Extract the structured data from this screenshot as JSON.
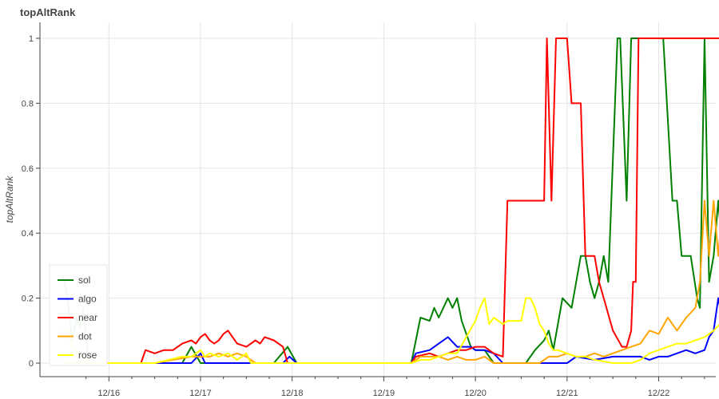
{
  "chart_data": {
    "type": "line",
    "title": "topAltRank",
    "xlabel": "",
    "ylabel": "topAltRank",
    "ylim": [
      0,
      1
    ],
    "yticks": [
      "0",
      "0.2",
      "0.4",
      "0.6",
      "0.8",
      "1"
    ],
    "xticks": [
      "12/16",
      "12/17",
      "12/18",
      "12/19",
      "12/20",
      "12/21",
      "12/22"
    ],
    "x_start": "12/15 12:00",
    "x_end": "12/22 12:00",
    "grid": true,
    "legend_position": "bottom-left",
    "series": [
      {
        "name": "sol",
        "color": "#008000",
        "points": [
          [
            -0.5,
            0.27
          ],
          [
            -0.45,
            0.2
          ],
          [
            -0.4,
            0.07
          ],
          [
            -0.35,
            0.14
          ],
          [
            -0.32,
            0.11
          ],
          [
            -0.28,
            0.17
          ],
          [
            -0.22,
            0.0
          ],
          [
            0.8,
            0.0
          ],
          [
            0.9,
            0.05
          ],
          [
            1.0,
            0.0
          ],
          [
            1.8,
            0.0
          ],
          [
            1.95,
            0.05
          ],
          [
            2.05,
            0.0
          ],
          [
            3.3,
            0.0
          ],
          [
            3.4,
            0.14
          ],
          [
            3.5,
            0.13
          ],
          [
            3.55,
            0.17
          ],
          [
            3.6,
            0.14
          ],
          [
            3.7,
            0.2
          ],
          [
            3.75,
            0.17
          ],
          [
            3.8,
            0.2
          ],
          [
            3.85,
            0.13
          ],
          [
            3.95,
            0.05
          ],
          [
            4.0,
            0.04
          ],
          [
            4.1,
            0.04
          ],
          [
            4.2,
            0.0
          ],
          [
            4.55,
            0.0
          ],
          [
            4.65,
            0.04
          ],
          [
            4.75,
            0.07
          ],
          [
            4.8,
            0.1
          ],
          [
            4.85,
            0.04
          ],
          [
            4.95,
            0.2
          ],
          [
            5.05,
            0.17
          ],
          [
            5.15,
            0.33
          ],
          [
            5.2,
            0.33
          ],
          [
            5.25,
            0.25
          ],
          [
            5.3,
            0.2
          ],
          [
            5.35,
            0.25
          ],
          [
            5.4,
            0.33
          ],
          [
            5.45,
            0.25
          ],
          [
            5.55,
            1.0
          ],
          [
            5.58,
            1.0
          ],
          [
            5.65,
            0.5
          ],
          [
            5.7,
            1.0
          ],
          [
            5.9,
            1.0
          ],
          [
            6.05,
            1.0
          ],
          [
            6.15,
            0.5
          ],
          [
            6.2,
            0.5
          ],
          [
            6.25,
            0.33
          ],
          [
            6.35,
            0.33
          ],
          [
            6.42,
            0.2
          ],
          [
            6.45,
            0.17
          ],
          [
            6.5,
            1.0
          ],
          [
            6.55,
            0.25
          ],
          [
            6.6,
            0.33
          ],
          [
            6.65,
            0.5
          ],
          [
            6.7,
            0.33
          ],
          [
            6.75,
            0.5
          ],
          [
            6.8,
            0.33
          ],
          [
            6.85,
            0.5
          ],
          [
            6.9,
            0.33
          ],
          [
            6.95,
            1.0
          ],
          [
            7.0,
            0.33
          ],
          [
            7.05,
            1.0
          ],
          [
            7.08,
            0.5
          ]
        ]
      },
      {
        "name": "algo",
        "color": "#0000ff",
        "points": [
          [
            -0.5,
            0.0
          ],
          [
            0.3,
            0.0
          ],
          [
            0.5,
            0.0
          ],
          [
            0.9,
            0.0
          ],
          [
            1.0,
            0.03
          ],
          [
            1.05,
            0.0
          ],
          [
            1.5,
            0.0
          ],
          [
            1.9,
            0.0
          ],
          [
            1.97,
            0.02
          ],
          [
            2.05,
            0.0
          ],
          [
            3.3,
            0.0
          ],
          [
            3.35,
            0.03
          ],
          [
            3.5,
            0.04
          ],
          [
            3.6,
            0.06
          ],
          [
            3.7,
            0.08
          ],
          [
            3.8,
            0.05
          ],
          [
            3.85,
            0.05
          ],
          [
            3.95,
            0.05
          ],
          [
            4.0,
            0.04
          ],
          [
            4.1,
            0.04
          ],
          [
            4.2,
            0.03
          ],
          [
            4.3,
            0.0
          ],
          [
            4.6,
            0.0
          ],
          [
            4.8,
            0.0
          ],
          [
            5.0,
            0.0
          ],
          [
            5.1,
            0.02
          ],
          [
            5.3,
            0.01
          ],
          [
            5.5,
            0.02
          ],
          [
            5.7,
            0.02
          ],
          [
            5.8,
            0.02
          ],
          [
            5.9,
            0.01
          ],
          [
            6.0,
            0.02
          ],
          [
            6.1,
            0.02
          ],
          [
            6.2,
            0.03
          ],
          [
            6.3,
            0.04
          ],
          [
            6.4,
            0.03
          ],
          [
            6.5,
            0.04
          ],
          [
            6.55,
            0.08
          ],
          [
            6.6,
            0.1
          ],
          [
            6.65,
            0.2
          ],
          [
            6.7,
            0.13
          ],
          [
            6.75,
            0.13
          ],
          [
            6.8,
            0.15
          ],
          [
            6.85,
            0.3
          ],
          [
            6.9,
            0.5
          ],
          [
            6.93,
            1.0
          ],
          [
            6.96,
            0.33
          ],
          [
            7.0,
            1.0
          ],
          [
            7.05,
            0.5
          ]
        ]
      },
      {
        "name": "near",
        "color": "#ff0000",
        "points": [
          [
            -0.5,
            0.0
          ],
          [
            0.0,
            0.0
          ],
          [
            0.35,
            0.0
          ],
          [
            0.4,
            0.04
          ],
          [
            0.5,
            0.03
          ],
          [
            0.6,
            0.04
          ],
          [
            0.7,
            0.04
          ],
          [
            0.8,
            0.06
          ],
          [
            0.9,
            0.07
          ],
          [
            0.95,
            0.06
          ],
          [
            1.0,
            0.08
          ],
          [
            1.05,
            0.09
          ],
          [
            1.1,
            0.07
          ],
          [
            1.15,
            0.06
          ],
          [
            1.2,
            0.07
          ],
          [
            1.25,
            0.09
          ],
          [
            1.3,
            0.1
          ],
          [
            1.35,
            0.08
          ],
          [
            1.4,
            0.06
          ],
          [
            1.5,
            0.05
          ],
          [
            1.6,
            0.07
          ],
          [
            1.65,
            0.06
          ],
          [
            1.7,
            0.08
          ],
          [
            1.8,
            0.07
          ],
          [
            1.9,
            0.05
          ],
          [
            1.95,
            0.0
          ],
          [
            3.3,
            0.0
          ],
          [
            3.35,
            0.02
          ],
          [
            3.5,
            0.03
          ],
          [
            3.6,
            0.02
          ],
          [
            3.7,
            0.03
          ],
          [
            3.8,
            0.04
          ],
          [
            3.9,
            0.04
          ],
          [
            4.0,
            0.05
          ],
          [
            4.1,
            0.05
          ],
          [
            4.2,
            0.03
          ],
          [
            4.3,
            0.02
          ],
          [
            4.35,
            0.5
          ],
          [
            4.45,
            0.5
          ],
          [
            4.6,
            0.5
          ],
          [
            4.75,
            0.5
          ],
          [
            4.78,
            1.0
          ],
          [
            4.83,
            0.5
          ],
          [
            4.88,
            1.0
          ],
          [
            5.0,
            1.0
          ],
          [
            5.05,
            0.8
          ],
          [
            5.15,
            0.8
          ],
          [
            5.2,
            0.33
          ],
          [
            5.3,
            0.33
          ],
          [
            5.35,
            0.25
          ],
          [
            5.4,
            0.2
          ],
          [
            5.5,
            0.1
          ],
          [
            5.6,
            0.05
          ],
          [
            5.65,
            0.05
          ],
          [
            5.7,
            0.1
          ],
          [
            5.72,
            0.25
          ],
          [
            5.75,
            0.25
          ],
          [
            5.78,
            1.0
          ],
          [
            6.05,
            1.0
          ],
          [
            6.15,
            1.0
          ],
          [
            6.3,
            1.0
          ],
          [
            6.5,
            1.0
          ],
          [
            6.7,
            1.0
          ],
          [
            6.9,
            1.0
          ],
          [
            6.95,
            0.5
          ],
          [
            7.0,
            0.5
          ],
          [
            7.05,
            0.25
          ]
        ]
      },
      {
        "name": "dot",
        "color": "#ffa500",
        "points": [
          [
            -0.5,
            0.0
          ],
          [
            0.5,
            0.0
          ],
          [
            0.9,
            0.02
          ],
          [
            1.0,
            0.02
          ],
          [
            1.1,
            0.02
          ],
          [
            1.2,
            0.03
          ],
          [
            1.3,
            0.02
          ],
          [
            1.4,
            0.03
          ],
          [
            1.5,
            0.02
          ],
          [
            1.6,
            0.0
          ],
          [
            1.9,
            0.0
          ],
          [
            2.0,
            0.0
          ],
          [
            3.3,
            0.0
          ],
          [
            3.4,
            0.02
          ],
          [
            3.5,
            0.02
          ],
          [
            3.6,
            0.02
          ],
          [
            3.7,
            0.01
          ],
          [
            3.8,
            0.02
          ],
          [
            3.9,
            0.01
          ],
          [
            4.0,
            0.01
          ],
          [
            4.1,
            0.02
          ],
          [
            4.2,
            0.0
          ],
          [
            4.7,
            0.0
          ],
          [
            4.8,
            0.02
          ],
          [
            4.9,
            0.02
          ],
          [
            5.0,
            0.03
          ],
          [
            5.1,
            0.02
          ],
          [
            5.2,
            0.02
          ],
          [
            5.3,
            0.03
          ],
          [
            5.4,
            0.02
          ],
          [
            5.5,
            0.03
          ],
          [
            5.6,
            0.04
          ],
          [
            5.7,
            0.05
          ],
          [
            5.8,
            0.06
          ],
          [
            5.9,
            0.1
          ],
          [
            6.0,
            0.09
          ],
          [
            6.1,
            0.14
          ],
          [
            6.2,
            0.1
          ],
          [
            6.3,
            0.14
          ],
          [
            6.4,
            0.17
          ],
          [
            6.45,
            0.25
          ],
          [
            6.5,
            0.5
          ],
          [
            6.55,
            0.33
          ],
          [
            6.6,
            0.5
          ],
          [
            6.65,
            0.33
          ],
          [
            6.7,
            0.5
          ],
          [
            6.75,
            0.33
          ],
          [
            6.8,
            0.5
          ],
          [
            6.85,
            0.33
          ],
          [
            6.9,
            0.25
          ],
          [
            6.95,
            0.2
          ],
          [
            7.0,
            0.2
          ],
          [
            7.05,
            0.2
          ]
        ]
      },
      {
        "name": "rose",
        "color": "#ffff00",
        "points": [
          [
            -0.5,
            0.1
          ],
          [
            -0.45,
            0.1
          ],
          [
            -0.4,
            0.05
          ],
          [
            -0.35,
            0.04
          ],
          [
            -0.3,
            0.02
          ],
          [
            -0.2,
            0.0
          ],
          [
            0.5,
            0.0
          ],
          [
            0.8,
            0.02
          ],
          [
            0.9,
            0.02
          ],
          [
            1.0,
            0.04
          ],
          [
            1.05,
            0.02
          ],
          [
            1.1,
            0.03
          ],
          [
            1.2,
            0.02
          ],
          [
            1.3,
            0.03
          ],
          [
            1.4,
            0.01
          ],
          [
            1.5,
            0.03
          ],
          [
            1.55,
            0.0
          ],
          [
            1.7,
            0.0
          ],
          [
            3.3,
            0.0
          ],
          [
            3.4,
            0.01
          ],
          [
            3.5,
            0.01
          ],
          [
            3.6,
            0.02
          ],
          [
            3.7,
            0.03
          ],
          [
            3.8,
            0.03
          ],
          [
            3.9,
            0.08
          ],
          [
            4.0,
            0.13
          ],
          [
            4.05,
            0.17
          ],
          [
            4.1,
            0.2
          ],
          [
            4.15,
            0.12
          ],
          [
            4.2,
            0.14
          ],
          [
            4.3,
            0.12
          ],
          [
            4.35,
            0.13
          ],
          [
            4.45,
            0.13
          ],
          [
            4.5,
            0.13
          ],
          [
            4.55,
            0.2
          ],
          [
            4.6,
            0.2
          ],
          [
            4.65,
            0.17
          ],
          [
            4.7,
            0.12
          ],
          [
            4.75,
            0.1
          ],
          [
            4.8,
            0.06
          ],
          [
            4.85,
            0.04
          ],
          [
            4.9,
            0.04
          ],
          [
            5.0,
            0.03
          ],
          [
            5.1,
            0.02
          ],
          [
            5.2,
            0.02
          ],
          [
            5.3,
            0.01
          ],
          [
            5.5,
            0.0
          ],
          [
            5.7,
            0.0
          ],
          [
            5.8,
            0.01
          ],
          [
            5.9,
            0.03
          ],
          [
            6.0,
            0.04
          ],
          [
            6.1,
            0.05
          ],
          [
            6.2,
            0.06
          ],
          [
            6.3,
            0.06
          ],
          [
            6.4,
            0.07
          ],
          [
            6.5,
            0.08
          ],
          [
            6.6,
            0.1
          ],
          [
            6.7,
            0.13
          ],
          [
            6.75,
            0.17
          ],
          [
            6.8,
            0.2
          ],
          [
            6.85,
            0.17
          ],
          [
            6.9,
            0.17
          ],
          [
            7.0,
            0.17
          ],
          [
            7.05,
            0.17
          ]
        ]
      }
    ]
  }
}
